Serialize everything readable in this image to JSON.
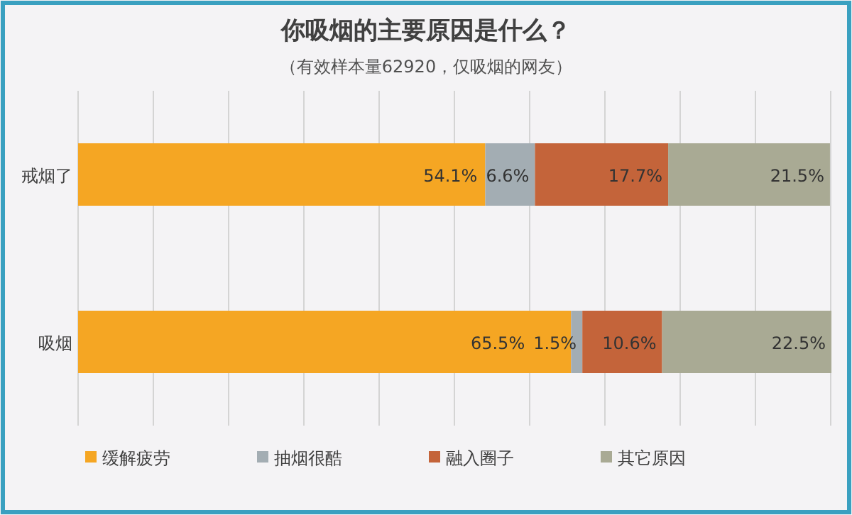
{
  "chart_data": {
    "type": "bar",
    "orientation": "horizontal",
    "stacked": true,
    "title": "你吸烟的主要原因是什么？",
    "subtitle": "（有效样本量62920，仅吸烟的网友）",
    "categories": [
      "戒烟了",
      "吸烟"
    ],
    "series": [
      {
        "name": "缓解疲劳",
        "color": "#f5a623",
        "values": [
          54.1,
          65.5
        ],
        "value_labels": [
          "54.1%",
          "65.5%"
        ]
      },
      {
        "name": "抽烟很酷",
        "color": "#a3adb3",
        "values": [
          6.6,
          1.5
        ],
        "value_labels": [
          "6.6%",
          "1.5%"
        ]
      },
      {
        "name": "融入圈子",
        "color": "#c4643a",
        "values": [
          17.7,
          10.6
        ],
        "value_labels": [
          "17.7%",
          "10.6%"
        ]
      },
      {
        "name": "其它原因",
        "color": "#a9aa94",
        "values": [
          21.5,
          22.5
        ],
        "value_labels": [
          "21.5%",
          "22.5%"
        ]
      }
    ],
    "xlim": [
      0,
      100
    ],
    "xticks": [
      {
        "value": 0,
        "label": null
      },
      {
        "value": 10,
        "label": null
      },
      {
        "value": 20,
        "label": null
      },
      {
        "value": 30,
        "label": null
      },
      {
        "value": 40,
        "label": null
      },
      {
        "value": 50,
        "label": null
      },
      {
        "value": 60,
        "label": null
      },
      {
        "value": 70,
        "label": null
      },
      {
        "value": 80,
        "label": null
      },
      {
        "value": 90,
        "label": null
      },
      {
        "value": 100,
        "label": null
      }
    ],
    "tick_labels": "y",
    "grid": "x",
    "legend": "bottom"
  }
}
